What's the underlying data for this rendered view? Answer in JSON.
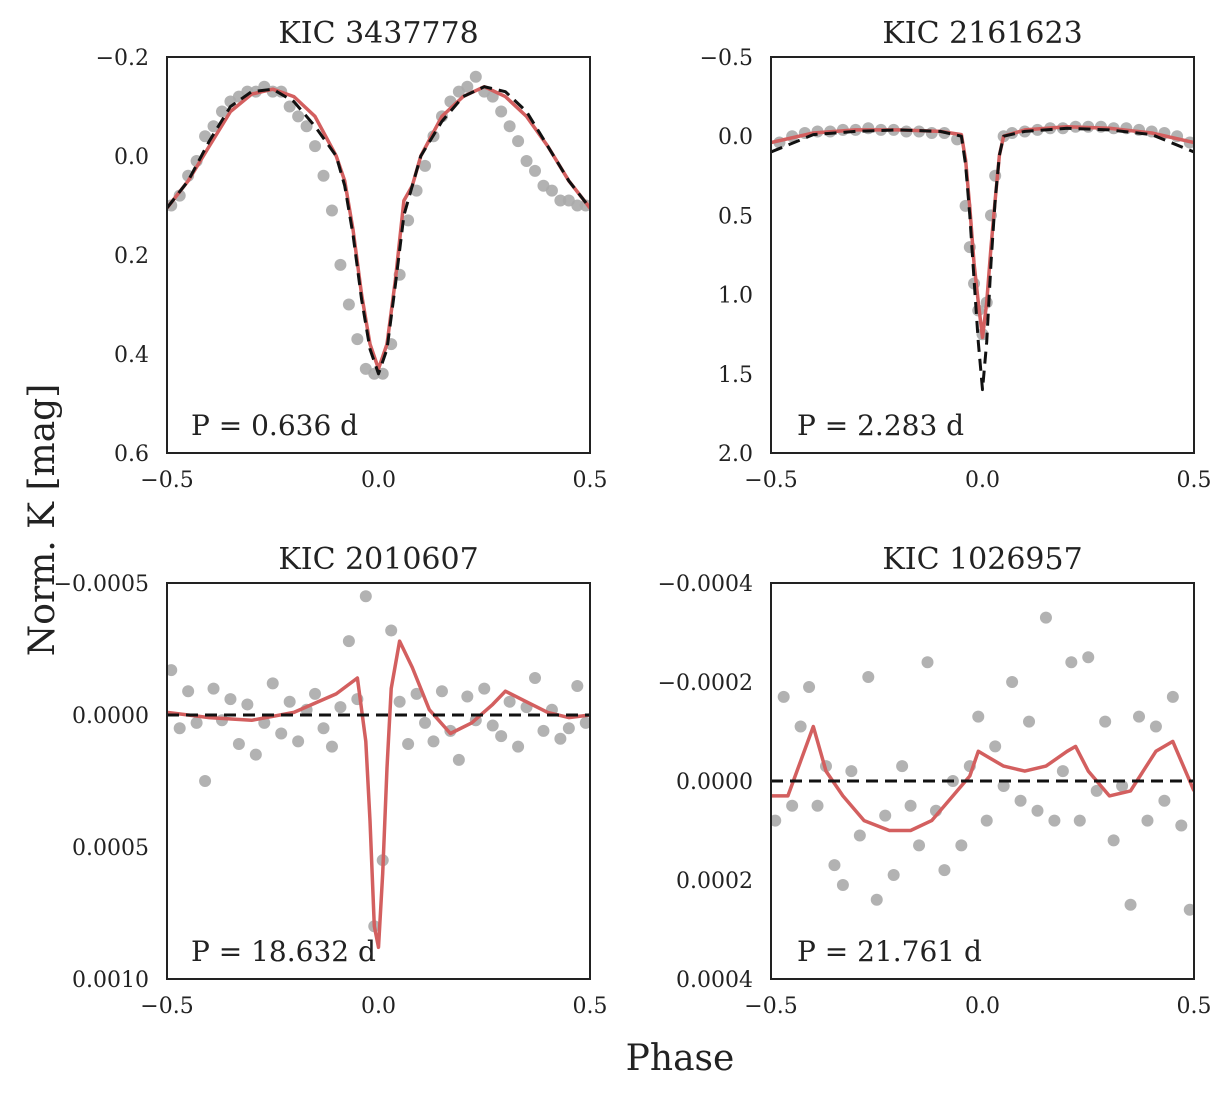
{
  "figure": {
    "ylabel": "Norm. K [mag]",
    "xlabel": "Phase",
    "colors": {
      "points": "#aaaaaa",
      "model": "#d35f5f",
      "reference": "#111111",
      "axes": "#222222"
    }
  },
  "chart_data": [
    {
      "type": "scatter",
      "title": "KIC 3437778",
      "annotation": "P = 0.636 d",
      "xlim": [
        -0.5,
        0.5
      ],
      "ylim": [
        -0.2,
        0.6
      ],
      "y_inverted": true,
      "xticks": [
        -0.5,
        0.0,
        0.5
      ],
      "xtick_labels": [
        "−0.5",
        "0.0",
        "0.5"
      ],
      "yticks": [
        -0.2,
        0.0,
        0.2,
        0.4,
        0.6
      ],
      "ytick_labels": [
        "−0.2",
        "0.0",
        "0.2",
        "0.4",
        "0.6"
      ],
      "series": [
        {
          "kind": "points",
          "x": [
            -0.49,
            -0.47,
            -0.45,
            -0.43,
            -0.41,
            -0.39,
            -0.37,
            -0.35,
            -0.33,
            -0.31,
            -0.29,
            -0.27,
            -0.25,
            -0.23,
            -0.21,
            -0.19,
            -0.17,
            -0.15,
            -0.13,
            -0.11,
            -0.09,
            -0.07,
            -0.05,
            -0.03,
            -0.01,
            0.01,
            0.03,
            0.05,
            0.07,
            0.09,
            0.11,
            0.13,
            0.15,
            0.17,
            0.19,
            0.21,
            0.23,
            0.25,
            0.27,
            0.29,
            0.31,
            0.33,
            0.35,
            0.37,
            0.39,
            0.41,
            0.43,
            0.45,
            0.47,
            0.49
          ],
          "y": [
            0.1,
            0.08,
            0.04,
            0.01,
            -0.04,
            -0.06,
            -0.09,
            -0.11,
            -0.12,
            -0.13,
            -0.13,
            -0.14,
            -0.13,
            -0.13,
            -0.1,
            -0.08,
            -0.06,
            -0.02,
            0.04,
            0.11,
            0.22,
            0.3,
            0.37,
            0.43,
            0.44,
            0.44,
            0.38,
            0.24,
            0.13,
            0.07,
            0.02,
            -0.04,
            -0.08,
            -0.11,
            -0.13,
            -0.14,
            -0.16,
            -0.13,
            -0.12,
            -0.09,
            -0.06,
            -0.03,
            0.01,
            0.03,
            0.06,
            0.07,
            0.09,
            0.09,
            0.1,
            0.1
          ]
        },
        {
          "kind": "model",
          "x": [
            -0.5,
            -0.45,
            -0.4,
            -0.35,
            -0.3,
            -0.25,
            -0.2,
            -0.15,
            -0.1,
            -0.08,
            -0.06,
            -0.04,
            -0.02,
            0.0,
            0.02,
            0.04,
            0.06,
            0.08,
            0.1,
            0.15,
            0.2,
            0.25,
            0.3,
            0.35,
            0.4,
            0.45,
            0.5
          ],
          "y": [
            0.105,
            0.05,
            -0.02,
            -0.09,
            -0.125,
            -0.135,
            -0.12,
            -0.08,
            0.0,
            0.05,
            0.15,
            0.28,
            0.38,
            0.43,
            0.38,
            0.25,
            0.09,
            0.06,
            0.0,
            -0.08,
            -0.12,
            -0.14,
            -0.12,
            -0.08,
            -0.02,
            0.05,
            0.105
          ]
        },
        {
          "kind": "reference",
          "x": [
            -0.5,
            -0.45,
            -0.4,
            -0.35,
            -0.3,
            -0.25,
            -0.2,
            -0.15,
            -0.1,
            -0.08,
            -0.06,
            -0.04,
            -0.02,
            0.0,
            0.02,
            0.04,
            0.06,
            0.08,
            0.1,
            0.15,
            0.2,
            0.25,
            0.3,
            0.35,
            0.4,
            0.45,
            0.5
          ],
          "y": [
            0.105,
            0.05,
            -0.03,
            -0.1,
            -0.13,
            -0.135,
            -0.11,
            -0.06,
            0.0,
            0.06,
            0.16,
            0.29,
            0.39,
            0.44,
            0.39,
            0.26,
            0.12,
            0.06,
            0.0,
            -0.07,
            -0.12,
            -0.14,
            -0.13,
            -0.09,
            -0.02,
            0.05,
            0.105
          ]
        }
      ]
    },
    {
      "type": "scatter",
      "title": "KIC 2161623",
      "annotation": "P = 2.283 d",
      "xlim": [
        -0.5,
        0.5
      ],
      "ylim": [
        -0.5,
        2.0
      ],
      "y_inverted": true,
      "xticks": [
        -0.5,
        0.0,
        0.5
      ],
      "xtick_labels": [
        "−0.5",
        "0.0",
        "0.5"
      ],
      "yticks": [
        -0.5,
        0.0,
        0.5,
        1.0,
        1.5,
        2.0
      ],
      "ytick_labels": [
        "−0.5",
        "0.0",
        "0.5",
        "1.0",
        "1.5",
        "2.0"
      ],
      "series": [
        {
          "kind": "points",
          "x": [
            -0.48,
            -0.45,
            -0.42,
            -0.39,
            -0.36,
            -0.33,
            -0.3,
            -0.27,
            -0.24,
            -0.21,
            -0.18,
            -0.15,
            -0.12,
            -0.09,
            -0.06,
            -0.04,
            -0.03,
            -0.02,
            -0.01,
            0.0,
            0.01,
            0.02,
            0.03,
            0.05,
            0.07,
            0.1,
            0.13,
            0.16,
            0.19,
            0.22,
            0.25,
            0.28,
            0.31,
            0.34,
            0.37,
            0.4,
            0.43,
            0.46,
            0.49
          ],
          "y": [
            0.04,
            0.0,
            -0.02,
            -0.03,
            -0.03,
            -0.04,
            -0.04,
            -0.05,
            -0.04,
            -0.04,
            -0.03,
            -0.03,
            -0.02,
            -0.02,
            0.02,
            0.44,
            0.7,
            0.93,
            1.1,
            1.25,
            1.05,
            0.5,
            0.25,
            0.0,
            -0.02,
            -0.03,
            -0.04,
            -0.05,
            -0.05,
            -0.06,
            -0.06,
            -0.06,
            -0.05,
            -0.05,
            -0.04,
            -0.03,
            -0.02,
            0.0,
            0.04
          ]
        },
        {
          "kind": "model",
          "x": [
            -0.5,
            -0.4,
            -0.3,
            -0.2,
            -0.1,
            -0.05,
            -0.04,
            -0.03,
            -0.02,
            -0.01,
            0.0,
            0.01,
            0.02,
            0.03,
            0.04,
            0.05,
            0.1,
            0.2,
            0.3,
            0.4,
            0.5
          ],
          "y": [
            0.04,
            -0.02,
            -0.04,
            -0.04,
            -0.03,
            -0.01,
            0.15,
            0.45,
            0.8,
            1.05,
            1.27,
            1.05,
            0.7,
            0.4,
            0.12,
            0.0,
            -0.04,
            -0.06,
            -0.05,
            -0.02,
            0.04
          ]
        },
        {
          "kind": "reference",
          "x": [
            -0.5,
            -0.4,
            -0.3,
            -0.2,
            -0.1,
            -0.05,
            -0.04,
            -0.03,
            -0.02,
            -0.01,
            0.0,
            0.01,
            0.02,
            0.03,
            0.04,
            0.05,
            0.1,
            0.2,
            0.3,
            0.4,
            0.5
          ],
          "y": [
            0.1,
            -0.01,
            -0.03,
            -0.04,
            -0.03,
            0.0,
            0.18,
            0.5,
            0.9,
            1.3,
            1.6,
            1.3,
            0.8,
            0.4,
            0.12,
            0.0,
            -0.03,
            -0.05,
            -0.04,
            -0.01,
            0.1
          ]
        }
      ]
    },
    {
      "type": "scatter",
      "title": "KIC 2010607",
      "annotation": "P = 18.632 d",
      "xlim": [
        -0.5,
        0.5
      ],
      "ylim": [
        -0.0005,
        0.001
      ],
      "y_inverted": true,
      "xticks": [
        -0.5,
        0.0,
        0.5
      ],
      "xtick_labels": [
        "−0.5",
        "0.0",
        "0.5"
      ],
      "yticks": [
        -0.0005,
        0.0,
        0.0005,
        0.001
      ],
      "ytick_labels": [
        "−0.0005",
        "0.0000",
        "0.0005",
        "0.0010"
      ],
      "series": [
        {
          "kind": "points",
          "x": [
            -0.49,
            -0.47,
            -0.45,
            -0.43,
            -0.41,
            -0.39,
            -0.37,
            -0.35,
            -0.33,
            -0.31,
            -0.29,
            -0.27,
            -0.25,
            -0.23,
            -0.21,
            -0.19,
            -0.17,
            -0.15,
            -0.13,
            -0.11,
            -0.09,
            -0.07,
            -0.05,
            -0.03,
            -0.01,
            0.01,
            0.03,
            0.05,
            0.07,
            0.09,
            0.11,
            0.13,
            0.15,
            0.17,
            0.19,
            0.21,
            0.23,
            0.25,
            0.27,
            0.29,
            0.31,
            0.33,
            0.35,
            0.37,
            0.39,
            0.41,
            0.43,
            0.45,
            0.47,
            0.49
          ],
          "y": [
            -0.00017,
            5e-05,
            -9e-05,
            3e-05,
            0.00025,
            -0.0001,
            2e-05,
            -6e-05,
            0.00011,
            -4e-05,
            0.00015,
            3e-05,
            -0.00012,
            7e-05,
            -5e-05,
            0.0001,
            -2e-05,
            -8e-05,
            5e-05,
            0.00012,
            -3e-05,
            -0.00028,
            -6e-05,
            -0.00045,
            0.0008,
            0.00055,
            -0.00032,
            -5e-05,
            0.00011,
            -8e-05,
            3e-05,
            0.0001,
            -9e-05,
            6e-05,
            0.00017,
            -7e-05,
            2e-05,
            -0.0001,
            4e-05,
            8e-05,
            -5e-05,
            0.00012,
            -3e-05,
            -0.00014,
            6e-05,
            -2e-05,
            9e-05,
            5e-05,
            -0.00011,
            3e-05
          ]
        },
        {
          "kind": "model",
          "x": [
            -0.5,
            -0.4,
            -0.3,
            -0.2,
            -0.1,
            -0.05,
            -0.03,
            -0.02,
            -0.01,
            0.0,
            0.01,
            0.02,
            0.03,
            0.05,
            0.08,
            0.12,
            0.17,
            0.22,
            0.27,
            0.3,
            0.35,
            0.4,
            0.45,
            0.5
          ],
          "y": [
            -1e-05,
            1e-05,
            2e-05,
            -1e-05,
            -8e-05,
            -0.00014,
            0.0001,
            0.0004,
            0.0008,
            0.00088,
            0.0006,
            0.0002,
            -0.0001,
            -0.00028,
            -0.00018,
            -2e-05,
            7e-05,
            3e-05,
            -4e-05,
            -9e-05,
            -5e-05,
            -1e-05,
            1e-05,
            0.0
          ]
        },
        {
          "kind": "reference",
          "x": [
            -0.5,
            0.5
          ],
          "y": [
            0.0,
            0.0
          ]
        }
      ]
    },
    {
      "type": "scatter",
      "title": "KIC 1026957",
      "annotation": "P = 21.761 d",
      "xlim": [
        -0.5,
        0.5
      ],
      "ylim": [
        -0.0004,
        0.0004
      ],
      "y_inverted": true,
      "xticks": [
        -0.5,
        0.0,
        0.5
      ],
      "xtick_labels": [
        "−0.5",
        "0.0",
        "0.5"
      ],
      "yticks": [
        -0.0004,
        -0.0002,
        0.0,
        0.0002,
        0.0004
      ],
      "ytick_labels": [
        "−0.0004",
        "−0.0002",
        "0.0000",
        "0.0002",
        "0.0004"
      ],
      "series": [
        {
          "kind": "points",
          "x": [
            -0.49,
            -0.47,
            -0.45,
            -0.43,
            -0.41,
            -0.39,
            -0.37,
            -0.35,
            -0.33,
            -0.31,
            -0.29,
            -0.27,
            -0.25,
            -0.23,
            -0.21,
            -0.19,
            -0.17,
            -0.15,
            -0.13,
            -0.11,
            -0.09,
            -0.07,
            -0.05,
            -0.03,
            -0.01,
            0.01,
            0.03,
            0.05,
            0.07,
            0.09,
            0.11,
            0.13,
            0.15,
            0.17,
            0.19,
            0.21,
            0.23,
            0.25,
            0.27,
            0.29,
            0.31,
            0.33,
            0.35,
            0.37,
            0.39,
            0.41,
            0.43,
            0.45,
            0.47,
            0.49
          ],
          "y": [
            8e-05,
            -0.00017,
            5e-05,
            -0.00011,
            -0.00019,
            5e-05,
            -3e-05,
            0.00017,
            0.00021,
            -2e-05,
            0.00011,
            -0.00021,
            0.00024,
            7e-05,
            0.00019,
            -3e-05,
            5e-05,
            0.00013,
            -0.00024,
            6e-05,
            0.00018,
            0.0,
            0.00013,
            -3e-05,
            -0.00013,
            8e-05,
            -7e-05,
            1e-05,
            -0.0002,
            4e-05,
            -0.00012,
            6e-05,
            -0.00033,
            8e-05,
            -2e-05,
            -0.00024,
            8e-05,
            -0.00025,
            2e-05,
            -0.00012,
            0.00012,
            1e-05,
            0.00025,
            -0.00013,
            8e-05,
            -0.00011,
            4e-05,
            -0.00017,
            9e-05,
            0.00026
          ]
        },
        {
          "kind": "model",
          "x": [
            -0.5,
            -0.46,
            -0.43,
            -0.4,
            -0.37,
            -0.33,
            -0.28,
            -0.22,
            -0.17,
            -0.12,
            -0.07,
            -0.03,
            -0.01,
            0.01,
            0.05,
            0.1,
            0.15,
            0.2,
            0.22,
            0.25,
            0.3,
            0.35,
            0.38,
            0.41,
            0.45,
            0.48,
            0.5
          ],
          "y": [
            3e-05,
            3e-05,
            -4e-05,
            -0.00011,
            -2e-05,
            3e-05,
            8e-05,
            0.0001,
            0.0001,
            8e-05,
            3e-05,
            -1e-05,
            -6e-05,
            -5e-05,
            -3e-05,
            -2e-05,
            -3e-05,
            -6e-05,
            -7e-05,
            -2e-05,
            3e-05,
            2e-05,
            -2e-05,
            -6e-05,
            -8e-05,
            -2e-05,
            2e-05
          ]
        },
        {
          "kind": "reference",
          "x": [
            -0.5,
            0.5
          ],
          "y": [
            0.0,
            0.0
          ]
        }
      ]
    }
  ]
}
